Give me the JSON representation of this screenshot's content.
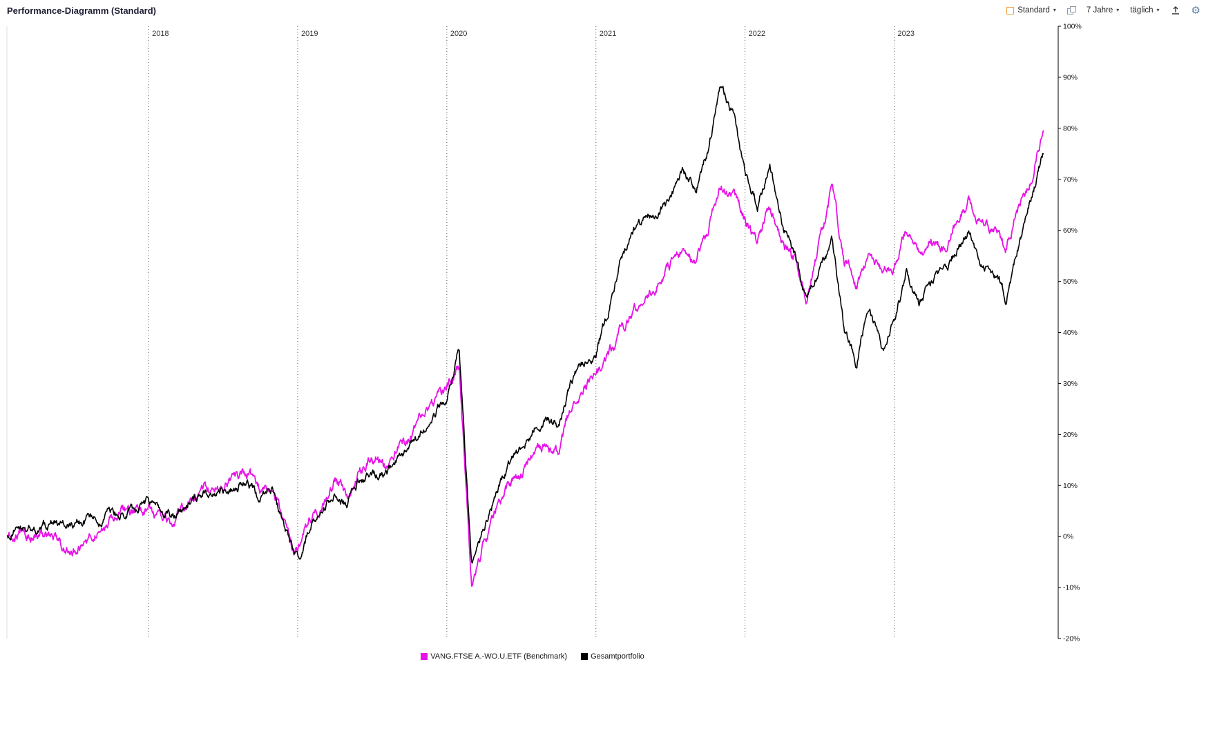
{
  "header": {
    "title": "Performance-Diagramm (Standard)"
  },
  "toolbar": {
    "preset_label": "Standard",
    "range_label": "7 Jahre",
    "frequency_label": "täglich",
    "icons": {
      "preset": "chart-style-icon",
      "duplicate": "duplicate-view-icon",
      "export": "export-icon",
      "settings": "gear-icon"
    }
  },
  "chart_data": {
    "type": "line",
    "title": "Performance-Diagramm (Standard)",
    "x_unit": "time",
    "x_start_year": 2017,
    "x_step": "1 month",
    "x_domain": [
      2017.05,
      2024.1
    ],
    "y_domain": [
      -20,
      100
    ],
    "y_ticks": [
      100,
      90,
      80,
      70,
      60,
      50,
      40,
      30,
      20,
      10,
      0,
      -10,
      -20
    ],
    "y_tick_suffix": "%",
    "year_gridlines": [
      2018,
      2019,
      2020,
      2021,
      2022,
      2023
    ],
    "grid": "vertical-dashed-year-lines",
    "legend_position": "bottom-center",
    "series": [
      {
        "name": "VANG.FTSE A.-WO.U.ETF (Benchmark)",
        "color": "#e813e8",
        "values": [
          0,
          0.5,
          1,
          0.4,
          -0.8,
          -1.6,
          -2.2,
          -1,
          1.6,
          3.6,
          4.6,
          5,
          6,
          3.8,
          3,
          6,
          8.6,
          9.2,
          10.2,
          11.2,
          12.6,
          9.2,
          10.2,
          2,
          -3.5,
          3,
          7,
          11,
          8,
          13,
          16,
          14,
          18,
          19,
          23,
          26,
          29,
          33,
          -9.5,
          -1,
          5,
          10,
          12,
          16,
          18,
          16,
          25,
          29,
          31,
          35,
          40,
          44,
          46,
          50,
          53,
          56,
          54,
          60,
          69,
          67,
          62,
          58,
          64,
          58,
          54,
          46,
          58,
          68,
          54,
          49,
          55,
          51,
          53,
          60,
          55,
          58,
          56,
          62,
          66,
          61,
          60,
          57,
          64,
          70,
          79.5
        ]
      },
      {
        "name": "Gesamtportfolio",
        "color": "#000000",
        "values": [
          0,
          0.8,
          1.5,
          1.2,
          2.2,
          2.6,
          2.2,
          3.2,
          3.6,
          4.6,
          5.2,
          5.6,
          6.6,
          5.4,
          4.6,
          6.2,
          7.6,
          8.2,
          8.6,
          9.6,
          10.6,
          7.4,
          9.2,
          1,
          -4.5,
          2,
          5.5,
          9,
          6.5,
          11,
          13.5,
          11.5,
          15,
          17,
          21,
          24,
          28,
          37,
          -5.5,
          2,
          8,
          14,
          17,
          21,
          24,
          22,
          30,
          34,
          36,
          44,
          55,
          60,
          62,
          64,
          67,
          71,
          68,
          76,
          88,
          83,
          72,
          65,
          73,
          62,
          55,
          46,
          52,
          58,
          40,
          34,
          46,
          36,
          42,
          52,
          46,
          50,
          52,
          56,
          60,
          54,
          52,
          47,
          57,
          66,
          75
        ]
      }
    ]
  }
}
